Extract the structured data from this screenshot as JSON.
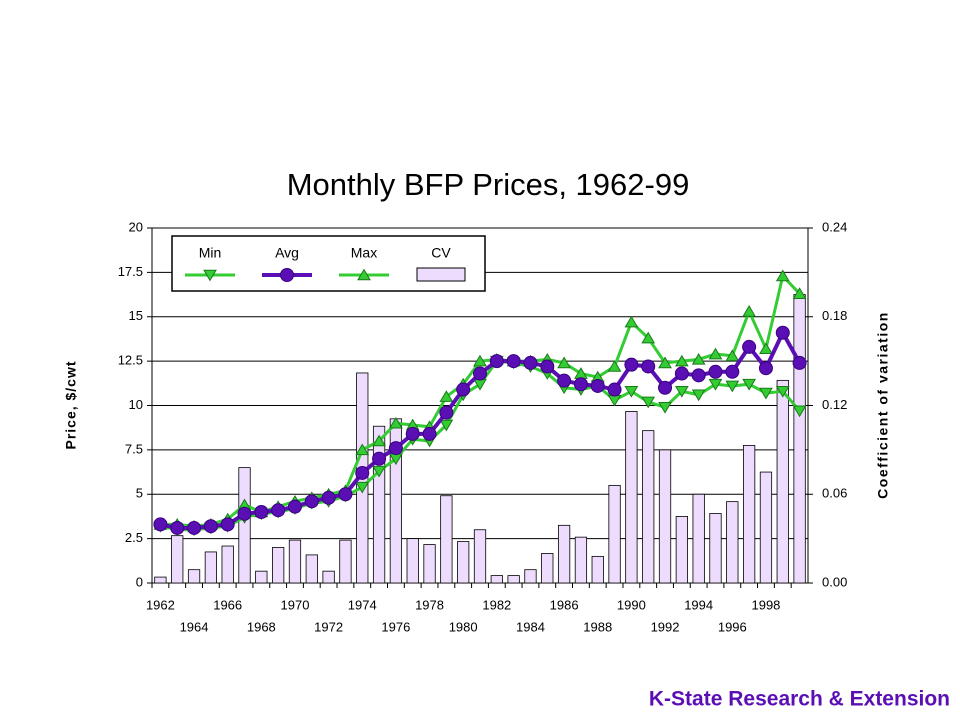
{
  "chart_data": {
    "type": "combo",
    "title": "Monthly BFP Prices, 1962-99",
    "y_label": "Price, $/cwt",
    "y2_label": "Coefficient of variation",
    "footer": "K-State Research & Extension",
    "categories": [
      "1962",
      null,
      "1964",
      null,
      "1966",
      null,
      "1968",
      null,
      "1970",
      null,
      "1972",
      null,
      "1974",
      null,
      "1976",
      null,
      "1978",
      null,
      "1980",
      null,
      "1982",
      null,
      "1984",
      null,
      "1986",
      null,
      "1988",
      null,
      "1990",
      null,
      "1992",
      null,
      "1994",
      null,
      "1996",
      null,
      "1998",
      null,
      null
    ],
    "ylim": [
      0,
      20
    ],
    "yticks": [
      0,
      2.5,
      5,
      7.5,
      10,
      12.5,
      15,
      17.5,
      20
    ],
    "y2lim": [
      0,
      0.24
    ],
    "y2ticks": [
      {
        "value": 0,
        "label": "0.00"
      },
      0.06,
      0.12,
      0.18,
      0.24
    ],
    "grid": true,
    "series": [
      {
        "name": "Min",
        "type": "line",
        "marker": "triangle-down",
        "color": "#33cc33",
        "values": [
          3.2,
          3.0,
          3.0,
          3.1,
          3.2,
          3.7,
          3.9,
          4.0,
          4.2,
          4.5,
          4.6,
          4.9,
          5.4,
          6.3,
          7.0,
          8.1,
          8.0,
          8.9,
          10.6,
          11.2,
          12.5,
          12.4,
          12.2,
          11.8,
          11.0,
          10.9,
          11.1,
          10.3,
          10.8,
          10.2,
          9.9,
          10.8,
          10.6,
          11.2,
          11.1,
          11.2,
          10.7,
          10.8,
          9.7
        ]
      },
      {
        "name": "Avg",
        "type": "line",
        "marker": "circle",
        "color": "#5a0fb4",
        "values": [
          3.3,
          3.1,
          3.1,
          3.2,
          3.3,
          3.9,
          4.0,
          4.1,
          4.3,
          4.6,
          4.8,
          5.0,
          6.2,
          7.0,
          7.6,
          8.4,
          8.4,
          9.6,
          10.9,
          11.8,
          12.5,
          12.5,
          12.4,
          12.2,
          11.4,
          11.2,
          11.1,
          10.9,
          12.3,
          12.2,
          11.0,
          11.8,
          11.7,
          11.9,
          11.9,
          13.3,
          12.1,
          14.1,
          12.4
        ]
      },
      {
        "name": "Max",
        "type": "line",
        "marker": "triangle-up",
        "color": "#33cc33",
        "values": [
          3.3,
          3.3,
          3.2,
          3.3,
          3.6,
          4.4,
          4.0,
          4.3,
          4.6,
          4.8,
          5.0,
          5.2,
          7.5,
          8.0,
          9.0,
          8.9,
          8.8,
          10.5,
          11.2,
          12.5,
          12.6,
          12.5,
          12.5,
          12.6,
          12.4,
          11.8,
          11.6,
          12.2,
          14.7,
          13.8,
          12.4,
          12.5,
          12.6,
          12.9,
          12.8,
          15.3,
          13.2,
          17.3,
          16.3
        ]
      },
      {
        "name": "CV",
        "type": "bar",
        "axis": "y2",
        "color": "#eedcff",
        "values": [
          0.004,
          0.032,
          0.009,
          0.021,
          0.025,
          0.078,
          0.008,
          0.024,
          0.029,
          0.019,
          0.008,
          0.029,
          0.142,
          0.106,
          0.111,
          0.03,
          0.026,
          0.059,
          0.028,
          0.036,
          0.005,
          0.005,
          0.009,
          0.02,
          0.039,
          0.031,
          0.018,
          0.066,
          0.116,
          0.103,
          0.09,
          0.045,
          0.06,
          0.047,
          0.055,
          0.093,
          0.075,
          0.137,
          0.195
        ]
      }
    ]
  }
}
